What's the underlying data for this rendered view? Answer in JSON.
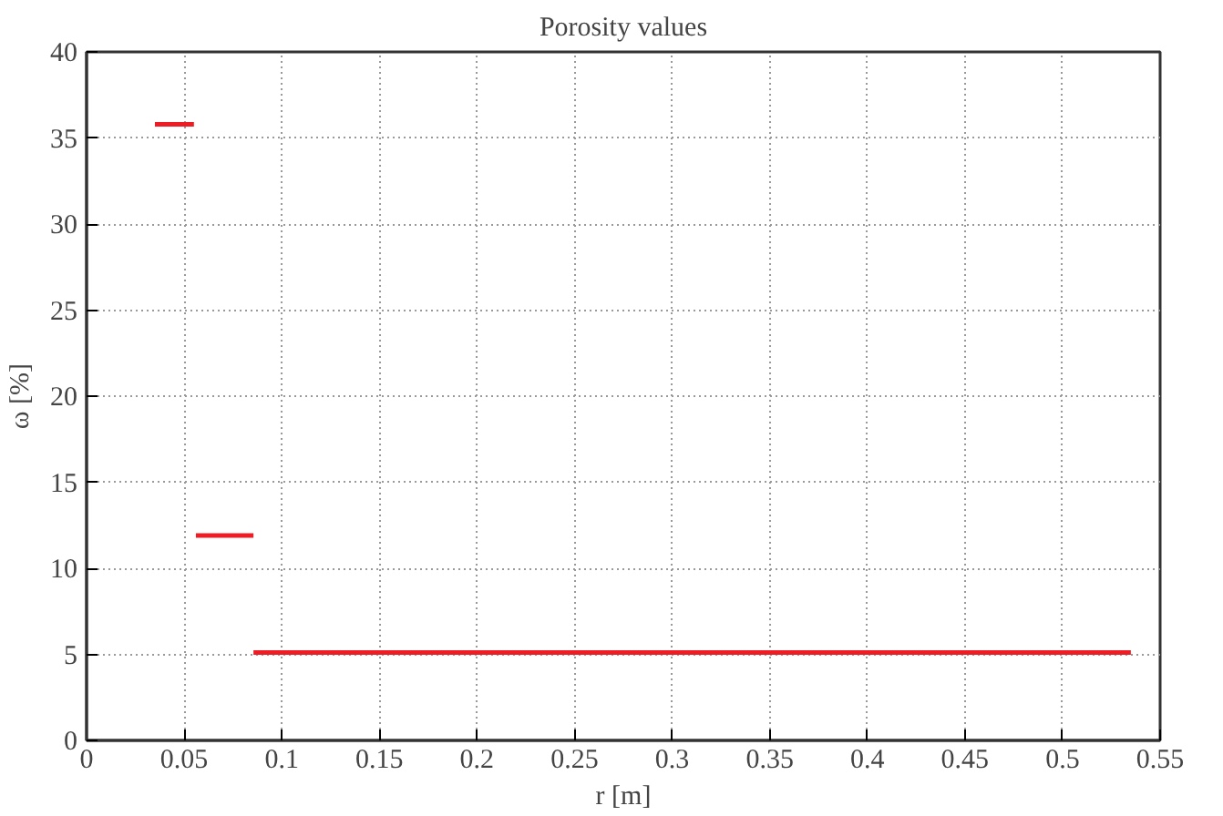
{
  "chart_data": {
    "type": "line",
    "title": "Porosity values",
    "xlabel": "r [m]",
    "ylabel": "ω [%]",
    "series": [
      {
        "color": "#ee1c24",
        "x": [
          0.035,
          0.055
        ],
        "values": [
          35.8,
          35.8
        ]
      },
      {
        "color": "#ee1c24",
        "x": [
          0.056,
          0.0855
        ],
        "values": [
          11.9,
          11.9
        ]
      },
      {
        "color": "#ee1c24",
        "x": [
          0.0855,
          0.535
        ],
        "values": [
          5.1,
          5.1
        ]
      }
    ],
    "xlim": [
      0,
      0.55
    ],
    "xticks": [
      0,
      0.05,
      0.1,
      0.15,
      0.2,
      0.25,
      0.3,
      0.35,
      0.4,
      0.45,
      0.5,
      0.55
    ],
    "ylim": [
      0,
      40
    ],
    "yticks": [
      0,
      5,
      10,
      15,
      20,
      25,
      30,
      35,
      40
    ],
    "grid": true,
    "line_style": "solid",
    "marker": "none"
  }
}
